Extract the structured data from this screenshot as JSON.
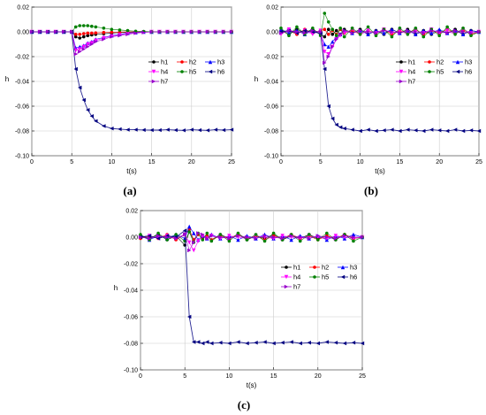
{
  "colors": {
    "h1": "#000000",
    "h2": "#ff0000",
    "h3": "#0000ff",
    "h4": "#ff00ff",
    "h5": "#008000",
    "h6": "#000080",
    "h7": "#9900cc"
  },
  "chart_data": [
    {
      "type": "line",
      "panel_label": "(a)",
      "xlabel": "t(s)",
      "ylabel": "h",
      "xlim": [
        0,
        25
      ],
      "ylim": [
        -0.1,
        0.02
      ],
      "x_ticks": [
        "0",
        "5",
        "10",
        "15",
        "20",
        "25"
      ],
      "y_ticks": [
        "0.02",
        "0.00",
        "-0.02",
        "-0.04",
        "-0.06",
        "-0.08",
        "-0.10"
      ],
      "grid": true,
      "legend_position": "right",
      "x": [
        0,
        1,
        2,
        3,
        4,
        5,
        5.5,
        6,
        6.5,
        7,
        7.5,
        8,
        9,
        10,
        11,
        12,
        13,
        14,
        15,
        16,
        17,
        18,
        19,
        20,
        21,
        22,
        23,
        24,
        25
      ],
      "series": [
        {
          "name": "h1",
          "values": [
            0,
            0,
            0,
            0,
            0,
            0,
            -0.004,
            -0.005,
            -0.004,
            -0.003,
            -0.0025,
            -0.002,
            -0.0015,
            -0.001,
            -0.0006,
            -0.0004,
            -0.0002,
            0,
            0,
            0,
            0,
            0,
            0,
            0,
            0,
            0,
            0,
            0,
            0
          ]
        },
        {
          "name": "h2",
          "values": [
            0,
            0,
            0,
            0,
            0,
            0,
            -0.002,
            -0.002,
            -0.0015,
            -0.001,
            -0.001,
            -0.0008,
            -0.0005,
            -0.0003,
            -0.0002,
            0,
            0,
            0,
            0,
            0,
            0,
            0,
            0,
            0,
            0,
            0,
            0,
            0,
            0
          ]
        },
        {
          "name": "h3",
          "values": [
            0,
            0,
            0,
            0,
            0,
            0,
            -0.013,
            -0.012,
            -0.011,
            -0.009,
            -0.008,
            -0.006,
            -0.0045,
            -0.003,
            -0.002,
            -0.001,
            -0.0005,
            0,
            0,
            0,
            0,
            0,
            0,
            0,
            0,
            0,
            0,
            0,
            0
          ]
        },
        {
          "name": "h4",
          "values": [
            0,
            0,
            0,
            0,
            0,
            0,
            -0.015,
            -0.014,
            -0.012,
            -0.01,
            -0.009,
            -0.007,
            -0.005,
            -0.0035,
            -0.0025,
            -0.0015,
            -0.0008,
            -0.0003,
            0,
            0,
            0,
            0,
            0,
            0,
            0,
            0,
            0,
            0,
            0
          ]
        },
        {
          "name": "h5",
          "values": [
            0,
            0,
            0,
            0,
            0,
            0,
            0.004,
            0.005,
            0.005,
            0.005,
            0.0045,
            0.004,
            0.003,
            0.002,
            0.0015,
            0.001,
            0.0005,
            0.0003,
            0,
            0,
            0,
            0,
            0,
            0,
            0,
            0,
            0,
            0,
            0
          ]
        },
        {
          "name": "h6",
          "values": [
            0,
            0,
            0,
            0,
            0,
            0,
            -0.03,
            -0.045,
            -0.055,
            -0.063,
            -0.068,
            -0.072,
            -0.076,
            -0.078,
            -0.0785,
            -0.079,
            -0.079,
            -0.0792,
            -0.0793,
            -0.0793,
            -0.079,
            -0.0793,
            -0.0795,
            -0.079,
            -0.0793,
            -0.0795,
            -0.079,
            -0.0793,
            -0.079
          ]
        },
        {
          "name": "h7",
          "values": [
            0,
            0,
            0,
            0,
            0,
            0,
            -0.018,
            -0.016,
            -0.014,
            -0.012,
            -0.01,
            -0.008,
            -0.006,
            -0.004,
            -0.003,
            -0.002,
            -0.001,
            -0.0005,
            0,
            0,
            0,
            0,
            0,
            0,
            0,
            0,
            0,
            0,
            0
          ]
        }
      ]
    },
    {
      "type": "line",
      "panel_label": "(b)",
      "xlabel": "t(s)",
      "ylabel": "h",
      "xlim": [
        0,
        25
      ],
      "ylim": [
        -0.1,
        0.02
      ],
      "x_ticks": [
        "0",
        "5",
        "10",
        "15",
        "20",
        "25"
      ],
      "y_ticks": [
        "0.02",
        "0.00",
        "-0.02",
        "-0.04",
        "-0.06",
        "-0.08",
        "-0.10"
      ],
      "grid": true,
      "legend_position": "right",
      "x": [
        0,
        1,
        2,
        3,
        4,
        5,
        5.5,
        6,
        6.5,
        7,
        7.5,
        8,
        9,
        10,
        11,
        12,
        13,
        14,
        15,
        16,
        17,
        18,
        19,
        20,
        21,
        22,
        23,
        24,
        25
      ],
      "series": [
        {
          "name": "h1",
          "values": [
            0.001,
            -0.002,
            0.002,
            -0.001,
            0.002,
            -0.002,
            -0.004,
            0.002,
            -0.002,
            0.001,
            -0.002,
            0.002,
            -0.001,
            0.002,
            -0.002,
            0.001,
            -0.002,
            0.002,
            -0.001,
            0.002,
            -0.002,
            0.001,
            -0.002,
            0.001,
            -0.001,
            0.002,
            -0.002,
            0.001,
            0
          ]
        },
        {
          "name": "h2",
          "values": [
            -0.001,
            0.001,
            -0.002,
            0.002,
            -0.001,
            0.001,
            0.002,
            -0.002,
            0.001,
            -0.002,
            0.002,
            -0.001,
            0.001,
            -0.002,
            0.001,
            -0.001,
            0.002,
            -0.002,
            0.001,
            -0.001,
            0.002,
            -0.002,
            0.001,
            -0.001,
            0.002,
            -0.001,
            0.001,
            -0.002,
            0
          ]
        },
        {
          "name": "h3",
          "values": [
            0.002,
            -0.001,
            0.001,
            -0.002,
            0.001,
            -0.002,
            -0.01,
            -0.012,
            -0.008,
            -0.004,
            -0.002,
            0.001,
            -0.001,
            0.001,
            -0.002,
            0.001,
            -0.001,
            0.002,
            -0.001,
            0.001,
            -0.002,
            0.001,
            -0.001,
            0.002,
            -0.001,
            0.001,
            -0.002,
            0.001,
            0
          ]
        },
        {
          "name": "h4",
          "values": [
            -0.002,
            0.002,
            -0.001,
            0.001,
            -0.002,
            0.001,
            -0.016,
            -0.018,
            -0.012,
            -0.006,
            -0.003,
            -0.001,
            0.002,
            -0.002,
            0.001,
            -0.001,
            0.002,
            -0.001,
            0.001,
            -0.002,
            0.001,
            -0.001,
            0.002,
            -0.001,
            0.001,
            -0.002,
            0.002,
            -0.001,
            0
          ]
        },
        {
          "name": "h5",
          "values": [
            0.003,
            -0.003,
            0.004,
            -0.002,
            0.003,
            -0.003,
            0.015,
            0.008,
            0.002,
            -0.003,
            0.003,
            -0.004,
            0.003,
            -0.002,
            0.004,
            -0.003,
            0.002,
            -0.004,
            0.003,
            -0.002,
            0.003,
            -0.004,
            0.002,
            -0.003,
            0.004,
            -0.002,
            0.003,
            -0.003,
            0
          ]
        },
        {
          "name": "h6",
          "values": [
            0,
            0.001,
            -0.001,
            0.001,
            0,
            -0.001,
            -0.03,
            -0.06,
            -0.07,
            -0.075,
            -0.077,
            -0.078,
            -0.079,
            -0.08,
            -0.079,
            -0.08,
            -0.0795,
            -0.079,
            -0.08,
            -0.079,
            -0.0795,
            -0.08,
            -0.079,
            -0.0795,
            -0.08,
            -0.079,
            -0.08,
            -0.0795,
            -0.08
          ]
        },
        {
          "name": "h7",
          "values": [
            -0.001,
            0.001,
            0,
            -0.001,
            0.001,
            0,
            -0.025,
            -0.02,
            -0.012,
            -0.006,
            -0.002,
            0.001,
            -0.001,
            0.001,
            0,
            -0.001,
            0.001,
            0,
            -0.001,
            0.001,
            0,
            -0.001,
            0.001,
            0,
            -0.001,
            0.001,
            0,
            -0.001,
            0
          ]
        }
      ]
    },
    {
      "type": "line",
      "panel_label": "(c)",
      "xlabel": "t(s)",
      "ylabel": "h",
      "xlim": [
        0,
        25
      ],
      "ylim": [
        -0.1,
        0.02
      ],
      "x_ticks": [
        "0",
        "5",
        "10",
        "15",
        "20",
        "25"
      ],
      "y_ticks": [
        "0.02",
        "0.00",
        "-0.02",
        "-0.04",
        "-0.06",
        "-0.08",
        "-0.10"
      ],
      "grid": true,
      "legend_position": "right",
      "x": [
        0,
        1,
        2,
        3,
        4,
        5,
        5.5,
        6,
        6.5,
        7,
        7.5,
        8,
        9,
        10,
        11,
        12,
        13,
        14,
        15,
        16,
        17,
        18,
        19,
        20,
        21,
        22,
        23,
        24,
        25
      ],
      "series": [
        {
          "name": "h1",
          "values": [
            0.001,
            -0.001,
            0.002,
            -0.002,
            0.001,
            -0.006,
            0.004,
            -0.002,
            0.002,
            -0.001,
            0.001,
            -0.002,
            0.002,
            -0.001,
            0.002,
            -0.002,
            0.001,
            -0.001,
            0.002,
            -0.002,
            0.001,
            -0.001,
            0.002,
            -0.001,
            0.001,
            -0.002,
            0.002,
            -0.001,
            0
          ]
        },
        {
          "name": "h2",
          "values": [
            -0.001,
            0.001,
            -0.001,
            0.002,
            -0.002,
            0.002,
            0.006,
            -0.002,
            0.002,
            -0.001,
            0.001,
            -0.002,
            0.001,
            -0.001,
            0.002,
            -0.001,
            0.001,
            -0.002,
            0.001,
            -0.001,
            0.002,
            -0.001,
            0.001,
            -0.002,
            0.001,
            -0.001,
            0.002,
            -0.001,
            0
          ]
        },
        {
          "name": "h3",
          "values": [
            0.001,
            -0.002,
            0.001,
            -0.001,
            0.002,
            -0.001,
            0.008,
            0.003,
            -0.002,
            0.001,
            -0.001,
            0.002,
            -0.001,
            0.001,
            -0.002,
            0.001,
            -0.001,
            0.002,
            -0.001,
            0.001,
            -0.002,
            0.001,
            -0.001,
            0.001,
            -0.002,
            0.001,
            -0.001,
            0.002,
            0
          ]
        },
        {
          "name": "h4",
          "values": [
            0,
            0.001,
            -0.001,
            0.001,
            -0.001,
            0.002,
            -0.004,
            -0.01,
            -0.003,
            0.001,
            -0.001,
            0.001,
            -0.001,
            0.001,
            0,
            -0.001,
            0.001,
            0,
            -0.001,
            0.001,
            0,
            -0.001,
            0.001,
            0,
            -0.001,
            0.001,
            0,
            -0.001,
            0
          ]
        },
        {
          "name": "h5",
          "values": [
            0.002,
            -0.002,
            0.003,
            -0.002,
            0.002,
            -0.003,
            0.004,
            -0.004,
            0.003,
            -0.002,
            0.003,
            -0.003,
            0.002,
            -0.003,
            0.003,
            -0.002,
            0.002,
            -0.003,
            0.003,
            -0.002,
            0.002,
            -0.003,
            0.002,
            -0.002,
            0.003,
            -0.002,
            0.002,
            -0.003,
            0
          ]
        },
        {
          "name": "h6",
          "values": [
            0,
            0.001,
            -0.001,
            0.001,
            0,
            0.005,
            -0.06,
            -0.079,
            -0.079,
            -0.08,
            -0.079,
            -0.08,
            -0.0795,
            -0.08,
            -0.079,
            -0.08,
            -0.0795,
            -0.079,
            -0.08,
            -0.0795,
            -0.079,
            -0.08,
            -0.0795,
            -0.08,
            -0.079,
            -0.0795,
            -0.08,
            -0.0795,
            -0.08
          ]
        },
        {
          "name": "h7",
          "values": [
            0,
            -0.001,
            0.001,
            0,
            -0.001,
            0.002,
            -0.01,
            -0.004,
            0.003,
            0.002,
            -0.001,
            0.001,
            0,
            -0.001,
            0.001,
            0,
            -0.001,
            0.001,
            0,
            -0.001,
            0.001,
            0,
            -0.001,
            0.001,
            0,
            -0.001,
            0.001,
            0,
            0
          ]
        }
      ]
    }
  ]
}
